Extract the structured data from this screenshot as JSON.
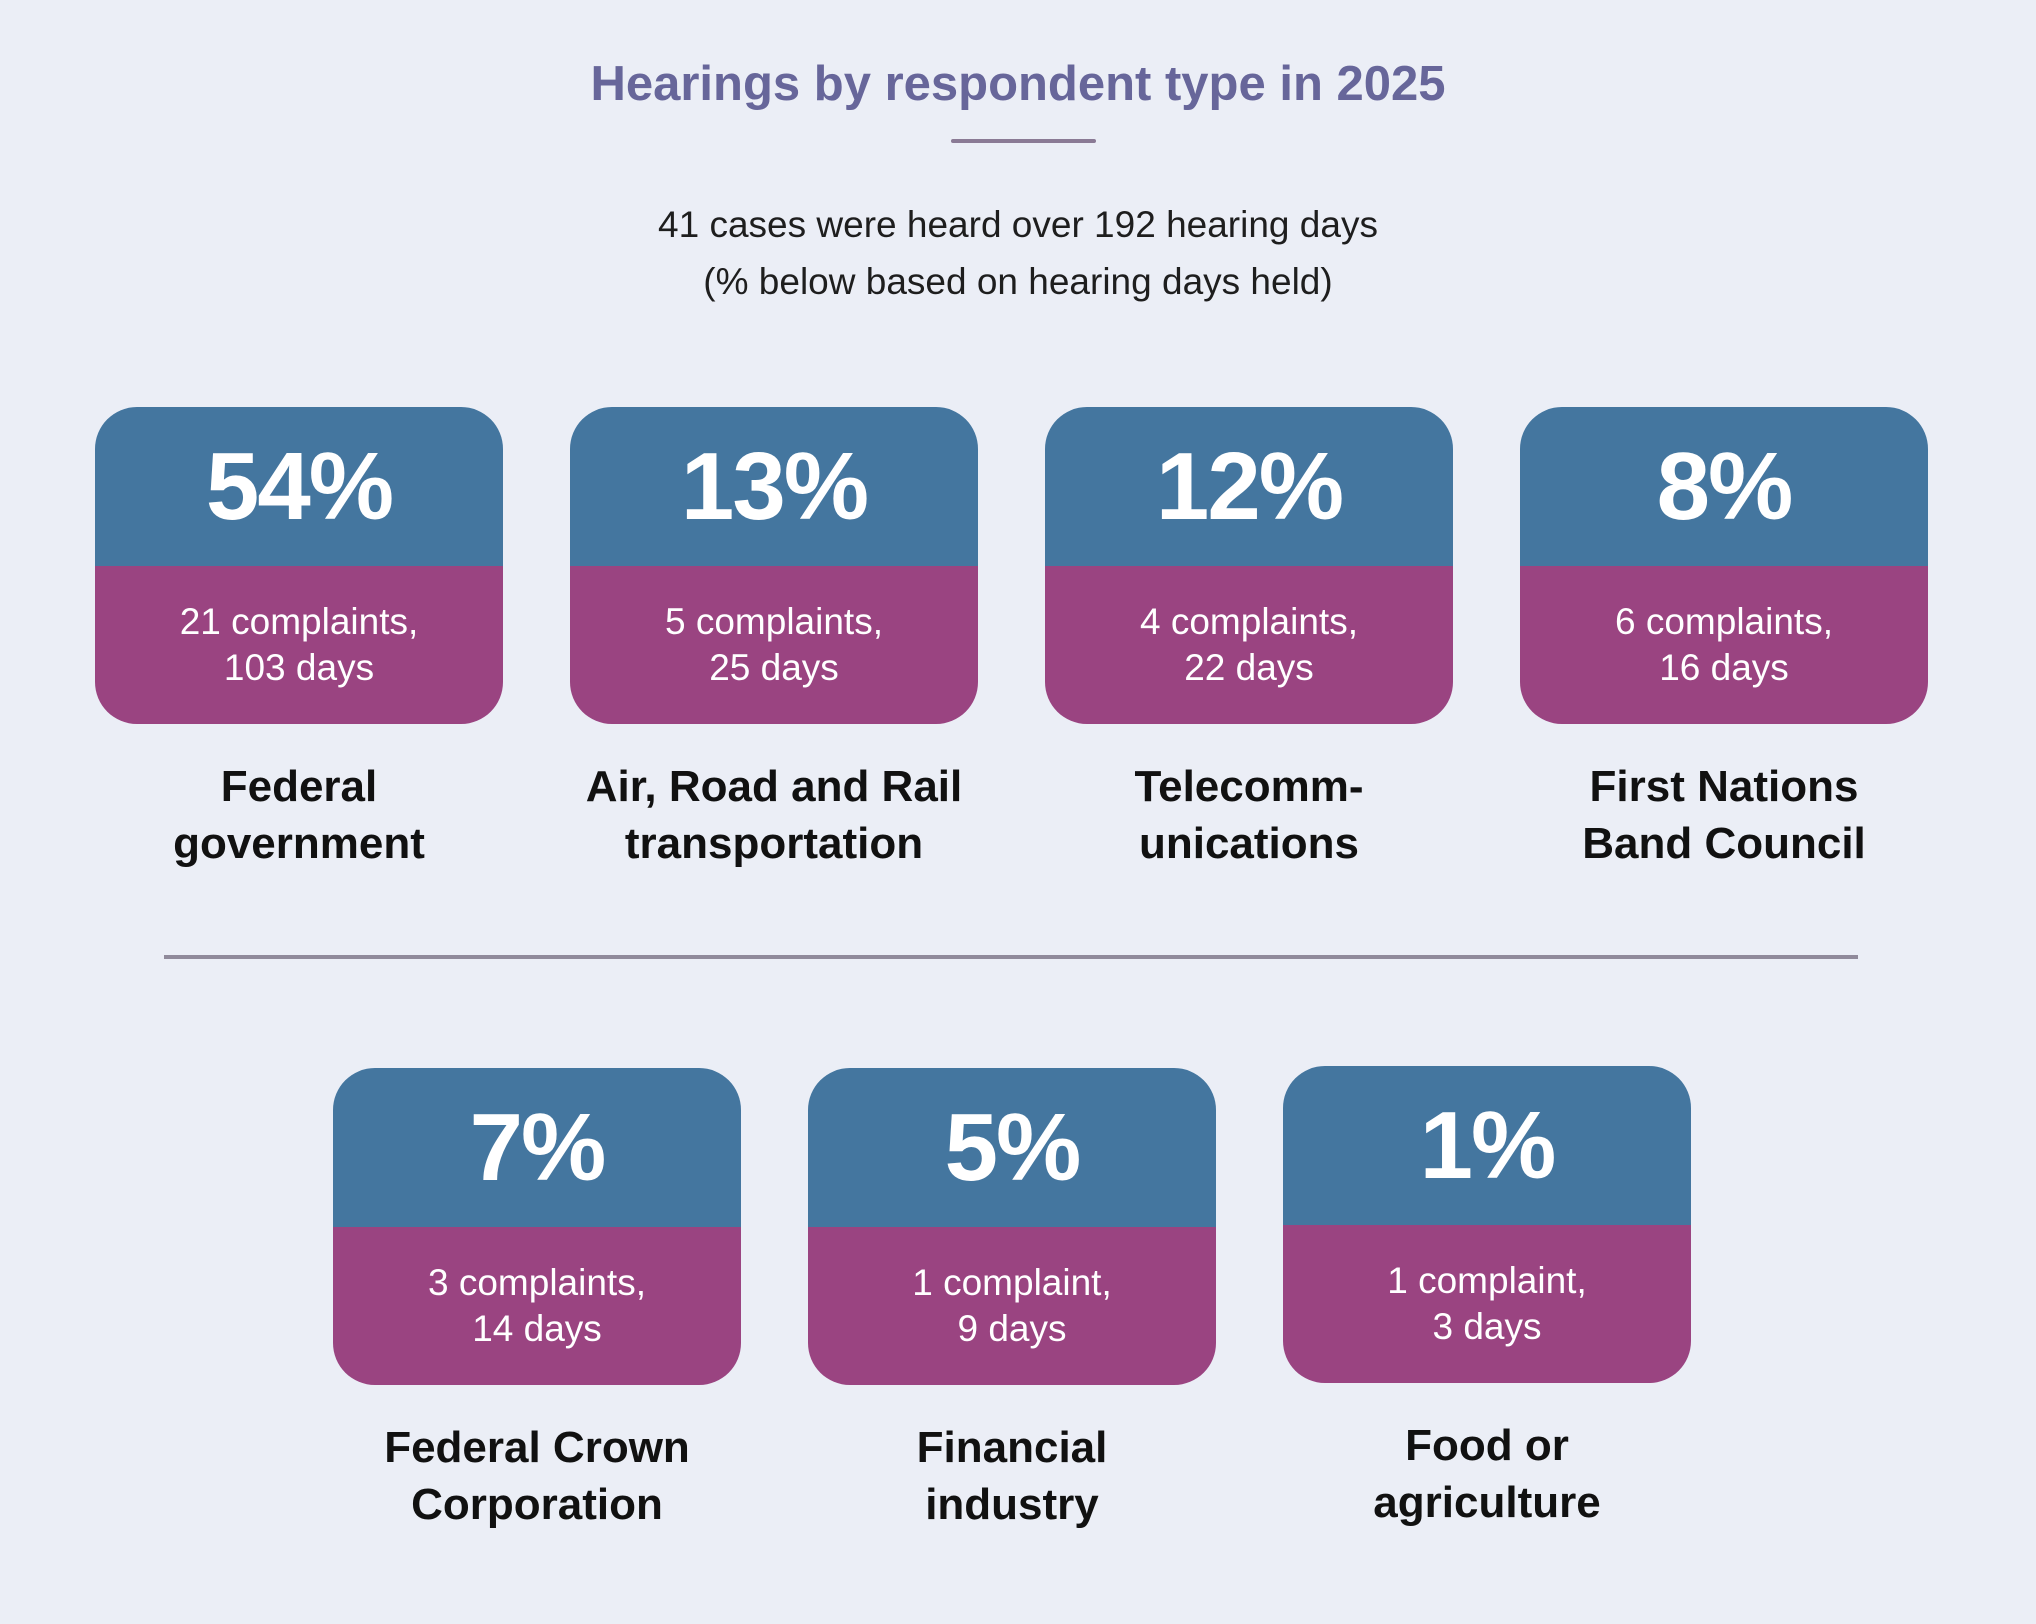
{
  "header": {
    "title": "Hearings by respondent type in 2025",
    "subtitle_line1": "41 cases were heard over 192 hearing days",
    "subtitle_line2": "(% below based on hearing days held)"
  },
  "colors": {
    "background": "#ebeef6",
    "title": "#67669a",
    "card_top": "#44769f",
    "card_bottom": "#9a4481"
  },
  "cards": [
    {
      "percent": "54%",
      "detail_line1": "21 complaints,",
      "detail_line2": "103 days",
      "label_line1": "Federal",
      "label_line2": "government"
    },
    {
      "percent": "13%",
      "detail_line1": "5 complaints,",
      "detail_line2": "25 days",
      "label_line1": "Air, Road and Rail",
      "label_line2": "transportation"
    },
    {
      "percent": "12%",
      "detail_line1": "4 complaints,",
      "detail_line2": "22 days",
      "label_line1": "Telecomm-",
      "label_line2": "unications"
    },
    {
      "percent": "8%",
      "detail_line1": "6 complaints,",
      "detail_line2": "16 days",
      "label_line1": "First Nations",
      "label_line2": "Band Council"
    },
    {
      "percent": "7%",
      "detail_line1": "3 complaints,",
      "detail_line2": "14 days",
      "label_line1": "Federal Crown",
      "label_line2": "Corporation"
    },
    {
      "percent": "5%",
      "detail_line1": "1 complaint,",
      "detail_line2": "9 days",
      "label_line1": "Financial",
      "label_line2": "industry"
    },
    {
      "percent": "1%",
      "detail_line1": "1 complaint,",
      "detail_line2": "3 days",
      "label_line1": "Food or",
      "label_line2": "agriculture"
    }
  ]
}
